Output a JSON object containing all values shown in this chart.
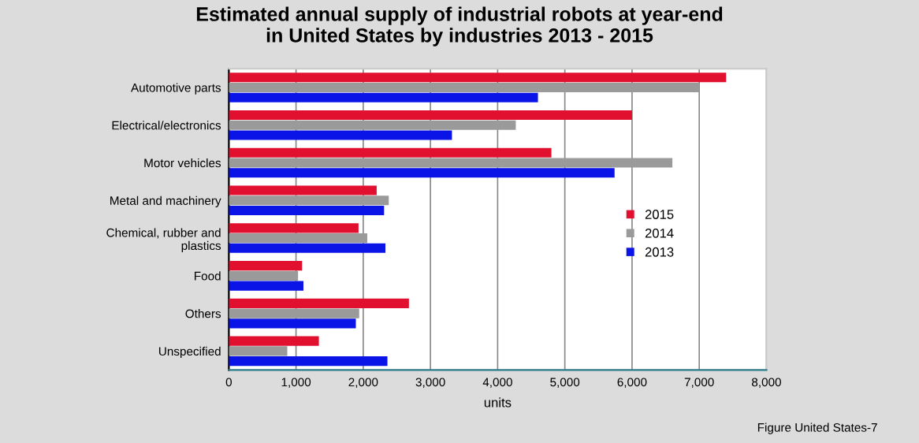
{
  "chart_data": {
    "type": "bar",
    "orientation": "horizontal",
    "title": "Estimated annual supply of industrial robots at year-end\nin United States by industries 2013 - 2015",
    "categories": [
      "Automotive parts",
      "Electrical/electronics",
      "Motor vehicles",
      "Metal and machinery",
      "Chemical, rubber and\nplastics",
      "Food",
      "Others",
      "Unspecified"
    ],
    "series": [
      {
        "name": "2015",
        "color": "#e0102e",
        "values": [
          7400,
          6000,
          4800,
          2200,
          1930,
          1090,
          2680,
          1340
        ]
      },
      {
        "name": "2014",
        "color": "#9a9a9a",
        "values": [
          7000,
          4270,
          6600,
          2380,
          2060,
          1030,
          1940,
          870
        ]
      },
      {
        "name": "2013",
        "color": "#0a14e6",
        "values": [
          4600,
          3320,
          5740,
          2310,
          2330,
          1110,
          1890,
          2360
        ]
      }
    ],
    "xlabel": "units",
    "xlim": [
      0,
      8000
    ],
    "xticks": [
      0,
      {
        "value": 1000,
        "label": "1,000"
      },
      {
        "value": 2000,
        "label": "2,000"
      },
      {
        "value": 3000,
        "label": "3,000"
      },
      {
        "value": 4000,
        "label": "4,000"
      },
      {
        "value": 5000,
        "label": "5,000"
      },
      {
        "value": 6000,
        "label": "6,000"
      },
      {
        "value": 7000,
        "label": "7,000"
      },
      {
        "value": 8000,
        "label": "8,000"
      }
    ],
    "grid": "x",
    "legend": "right",
    "annotations": [
      "Figure United States-7"
    ]
  }
}
